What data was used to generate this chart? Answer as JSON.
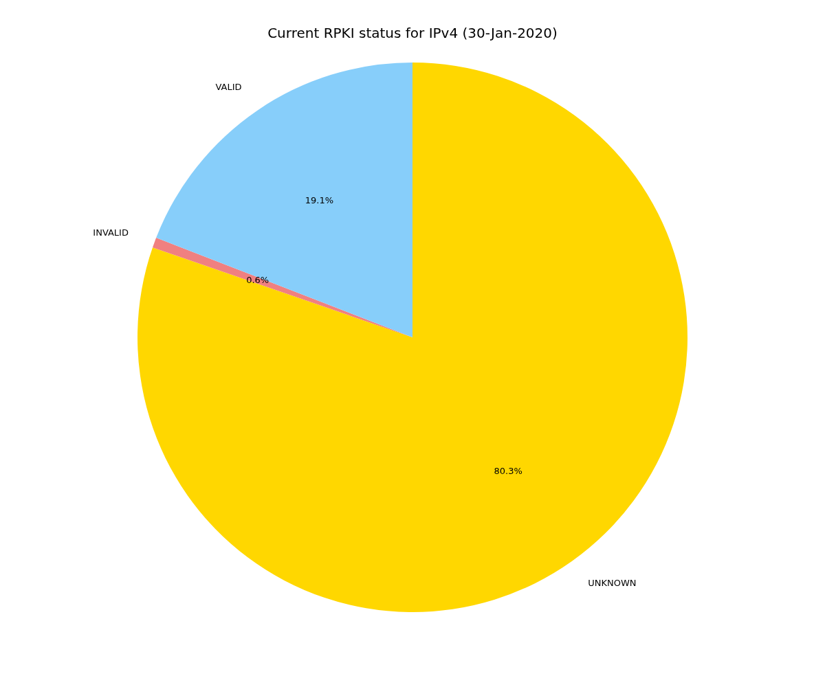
{
  "chart_data": {
    "type": "pie",
    "title": "Current RPKI status for IPv4 (30-Jan-2020)",
    "categories": [
      "UNKNOWN",
      "INVALID",
      "VALID"
    ],
    "values": [
      80.3,
      0.6,
      19.1
    ],
    "value_labels": [
      "80.3%",
      "0.6%",
      "19.1%"
    ],
    "colors": [
      "#ffd700",
      "#f08080",
      "#87cefa"
    ],
    "legend": false
  }
}
